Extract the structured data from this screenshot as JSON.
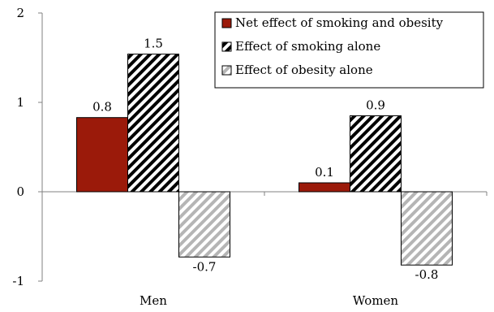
{
  "chart_data": {
    "type": "bar",
    "categories": [
      "Men",
      "Women"
    ],
    "series": [
      {
        "name": "Net effect of smoking and obesity",
        "values": [
          0.83,
          0.1
        ],
        "labels": [
          "0.8",
          "0.1"
        ],
        "color": "#9b1a0a",
        "pattern": "solid"
      },
      {
        "name": "Effect of smoking alone",
        "values": [
          1.54,
          0.85
        ],
        "labels": [
          "1.5",
          "0.9"
        ],
        "color": "#000000",
        "pattern": "hatch-black"
      },
      {
        "name": "Effect of obesity alone",
        "values": [
          -0.73,
          -0.82
        ],
        "labels": [
          "-0.7",
          "-0.8"
        ],
        "color": "#b0b0b0",
        "pattern": "hatch-gray"
      }
    ],
    "yticks": [
      "-1",
      "0",
      "1",
      "2"
    ],
    "ylim": [
      -1,
      2
    ],
    "grid": false,
    "legend_position": "top-right"
  }
}
